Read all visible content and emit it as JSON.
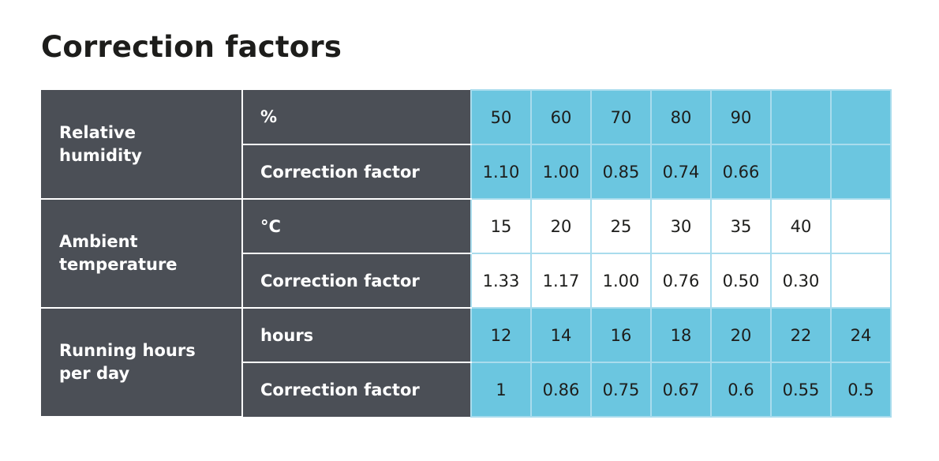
{
  "title": "Correction factors",
  "colors": {
    "header_dark": "#4b4f56",
    "cell_blue": "#6bc6e0",
    "cell_white": "#ffffff",
    "grid_line": "#a9dced"
  },
  "groups": [
    {
      "name": "Relative humidity",
      "shade": "blue",
      "rows": [
        {
          "label": "%",
          "values": [
            "50",
            "60",
            "70",
            "80",
            "90",
            "",
            ""
          ]
        },
        {
          "label": "Correction factor",
          "values": [
            "1.10",
            "1.00",
            "0.85",
            "0.74",
            "0.66",
            "",
            ""
          ]
        }
      ]
    },
    {
      "name": "Ambient temperature",
      "shade": "white",
      "rows": [
        {
          "label": "°C",
          "values": [
            "15",
            "20",
            "25",
            "30",
            "35",
            "40",
            ""
          ]
        },
        {
          "label": "Correction factor",
          "values": [
            "1.33",
            "1.17",
            "1.00",
            "0.76",
            "0.50",
            "0.30",
            ""
          ]
        }
      ]
    },
    {
      "name": "Running hours per day",
      "shade": "blue",
      "rows": [
        {
          "label": "hours",
          "values": [
            "12",
            "14",
            "16",
            "18",
            "20",
            "22",
            "24"
          ]
        },
        {
          "label": "Correction factor",
          "values": [
            "1",
            "0.86",
            "0.75",
            "0.67",
            "0.6",
            "0.55",
            "0.5"
          ]
        }
      ]
    }
  ]
}
